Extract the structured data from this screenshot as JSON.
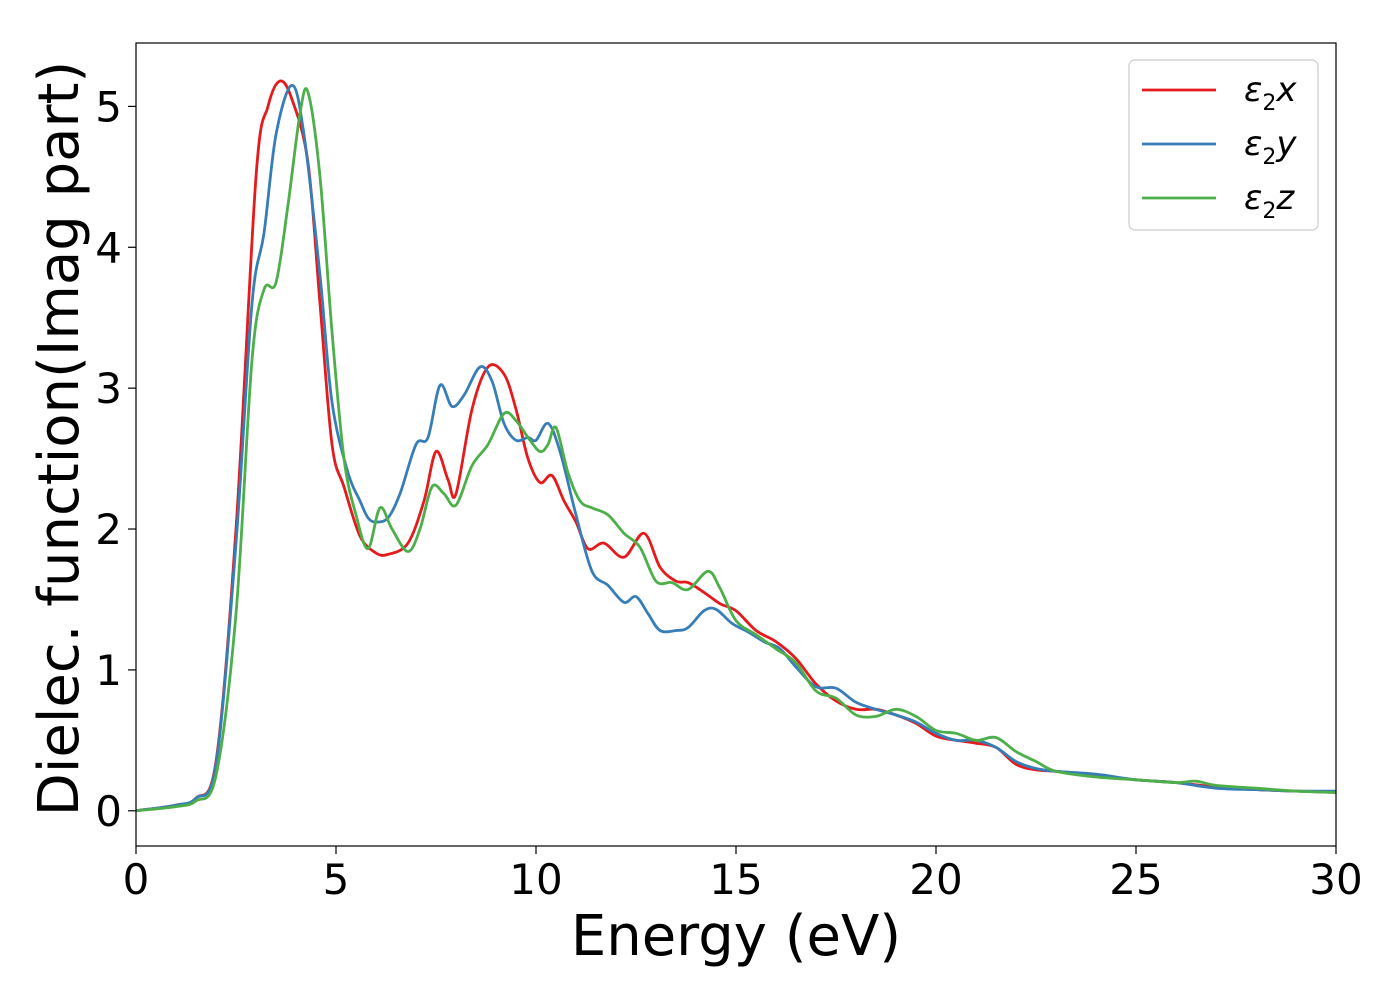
{
  "chart_data": {
    "type": "line",
    "xlabel": "Energy (eV)",
    "ylabel": "Dielec. function(Imag part)",
    "xlim": [
      0,
      30
    ],
    "ylim": [
      -0.25,
      5.45
    ],
    "xticks": [
      "0",
      "5",
      "10",
      "15",
      "20",
      "25",
      "30"
    ],
    "yticks": [
      "0",
      "1",
      "2",
      "3",
      "4",
      "5"
    ],
    "grid": false,
    "legend_position": "top-right",
    "series": [
      {
        "name": "ε2x",
        "legend": {
          "base": "ε",
          "sub": "2",
          "tail": "x"
        },
        "color": "#e41a1c",
        "points": [
          [
            0,
            0
          ],
          [
            1,
            0.04
          ],
          [
            1.5,
            0.09
          ],
          [
            2,
            0.35
          ],
          [
            2.5,
            2.0
          ],
          [
            3,
            4.5
          ],
          [
            3.3,
            5.0
          ],
          [
            3.6,
            5.18
          ],
          [
            3.9,
            5.05
          ],
          [
            4.3,
            4.6
          ],
          [
            4.6,
            3.6
          ],
          [
            4.9,
            2.6
          ],
          [
            5.2,
            2.3
          ],
          [
            5.6,
            1.95
          ],
          [
            6.0,
            1.83
          ],
          [
            6.3,
            1.82
          ],
          [
            6.8,
            1.9
          ],
          [
            7.2,
            2.2
          ],
          [
            7.5,
            2.55
          ],
          [
            7.8,
            2.35
          ],
          [
            8.0,
            2.25
          ],
          [
            8.4,
            2.85
          ],
          [
            8.8,
            3.15
          ],
          [
            9.2,
            3.1
          ],
          [
            9.5,
            2.85
          ],
          [
            9.8,
            2.5
          ],
          [
            10.1,
            2.33
          ],
          [
            10.4,
            2.38
          ],
          [
            10.7,
            2.2
          ],
          [
            11.0,
            2.05
          ],
          [
            11.3,
            1.86
          ],
          [
            11.7,
            1.9
          ],
          [
            12.2,
            1.8
          ],
          [
            12.7,
            1.97
          ],
          [
            13.1,
            1.73
          ],
          [
            13.5,
            1.63
          ],
          [
            13.8,
            1.62
          ],
          [
            14.2,
            1.55
          ],
          [
            14.6,
            1.47
          ],
          [
            15.0,
            1.42
          ],
          [
            15.5,
            1.28
          ],
          [
            16.0,
            1.2
          ],
          [
            16.5,
            1.08
          ],
          [
            17.0,
            0.9
          ],
          [
            17.5,
            0.78
          ],
          [
            18.0,
            0.72
          ],
          [
            18.5,
            0.72
          ],
          [
            19.0,
            0.68
          ],
          [
            19.5,
            0.62
          ],
          [
            20.0,
            0.53
          ],
          [
            20.5,
            0.5
          ],
          [
            21.0,
            0.48
          ],
          [
            21.5,
            0.45
          ],
          [
            22.0,
            0.33
          ],
          [
            22.5,
            0.29
          ],
          [
            23.0,
            0.28
          ],
          [
            24.0,
            0.25
          ],
          [
            25.0,
            0.22
          ],
          [
            26.0,
            0.2
          ],
          [
            27.0,
            0.17
          ],
          [
            28.0,
            0.15
          ],
          [
            29.0,
            0.14
          ],
          [
            30.0,
            0.13
          ]
        ]
      },
      {
        "name": "ε2y",
        "legend": {
          "base": "ε",
          "sub": "2",
          "tail": "y"
        },
        "color": "#377eb8",
        "points": [
          [
            0,
            0
          ],
          [
            1,
            0.04
          ],
          [
            1.5,
            0.09
          ],
          [
            2,
            0.33
          ],
          [
            2.5,
            1.9
          ],
          [
            2.9,
            3.6
          ],
          [
            3.2,
            4.1
          ],
          [
            3.5,
            4.8
          ],
          [
            3.9,
            5.15
          ],
          [
            4.2,
            4.8
          ],
          [
            4.6,
            3.8
          ],
          [
            4.9,
            2.9
          ],
          [
            5.3,
            2.4
          ],
          [
            5.6,
            2.2
          ],
          [
            5.8,
            2.08
          ],
          [
            6.0,
            2.05
          ],
          [
            6.3,
            2.08
          ],
          [
            6.6,
            2.25
          ],
          [
            7.0,
            2.6
          ],
          [
            7.3,
            2.65
          ],
          [
            7.6,
            3.02
          ],
          [
            7.9,
            2.87
          ],
          [
            8.2,
            2.95
          ],
          [
            8.6,
            3.15
          ],
          [
            8.9,
            3.05
          ],
          [
            9.2,
            2.75
          ],
          [
            9.5,
            2.63
          ],
          [
            9.8,
            2.65
          ],
          [
            10.0,
            2.63
          ],
          [
            10.3,
            2.75
          ],
          [
            10.6,
            2.55
          ],
          [
            11.0,
            2.1
          ],
          [
            11.4,
            1.7
          ],
          [
            11.8,
            1.6
          ],
          [
            12.2,
            1.48
          ],
          [
            12.5,
            1.52
          ],
          [
            12.8,
            1.4
          ],
          [
            13.1,
            1.28
          ],
          [
            13.5,
            1.28
          ],
          [
            13.8,
            1.3
          ],
          [
            14.2,
            1.42
          ],
          [
            14.5,
            1.43
          ],
          [
            14.9,
            1.33
          ],
          [
            15.3,
            1.27
          ],
          [
            15.7,
            1.2
          ],
          [
            16.1,
            1.15
          ],
          [
            16.5,
            1.02
          ],
          [
            17.0,
            0.88
          ],
          [
            17.5,
            0.87
          ],
          [
            18.0,
            0.77
          ],
          [
            18.5,
            0.72
          ],
          [
            19.0,
            0.68
          ],
          [
            19.5,
            0.63
          ],
          [
            20.0,
            0.55
          ],
          [
            20.5,
            0.5
          ],
          [
            21.0,
            0.5
          ],
          [
            21.5,
            0.45
          ],
          [
            22.0,
            0.35
          ],
          [
            22.5,
            0.3
          ],
          [
            23.0,
            0.28
          ],
          [
            24.0,
            0.26
          ],
          [
            25.0,
            0.22
          ],
          [
            26.0,
            0.2
          ],
          [
            27.0,
            0.16
          ],
          [
            28.0,
            0.15
          ],
          [
            29.0,
            0.14
          ],
          [
            30.0,
            0.14
          ]
        ]
      },
      {
        "name": "ε2z",
        "legend": {
          "base": "ε",
          "sub": "2",
          "tail": "z"
        },
        "color": "#4daf4a",
        "points": [
          [
            0,
            0
          ],
          [
            1,
            0.03
          ],
          [
            1.5,
            0.07
          ],
          [
            2,
            0.25
          ],
          [
            2.5,
            1.4
          ],
          [
            2.9,
            3.2
          ],
          [
            3.2,
            3.7
          ],
          [
            3.5,
            3.75
          ],
          [
            3.8,
            4.3
          ],
          [
            4.1,
            4.95
          ],
          [
            4.3,
            5.1
          ],
          [
            4.6,
            4.5
          ],
          [
            4.9,
            3.4
          ],
          [
            5.2,
            2.5
          ],
          [
            5.5,
            2.1
          ],
          [
            5.8,
            1.86
          ],
          [
            6.1,
            2.15
          ],
          [
            6.4,
            2.0
          ],
          [
            6.8,
            1.84
          ],
          [
            7.1,
            2.0
          ],
          [
            7.4,
            2.3
          ],
          [
            7.7,
            2.25
          ],
          [
            8.0,
            2.17
          ],
          [
            8.4,
            2.45
          ],
          [
            8.8,
            2.6
          ],
          [
            9.2,
            2.82
          ],
          [
            9.5,
            2.77
          ],
          [
            9.8,
            2.65
          ],
          [
            10.1,
            2.55
          ],
          [
            10.3,
            2.6
          ],
          [
            10.5,
            2.72
          ],
          [
            10.8,
            2.4
          ],
          [
            11.1,
            2.2
          ],
          [
            11.4,
            2.15
          ],
          [
            11.8,
            2.1
          ],
          [
            12.2,
            1.97
          ],
          [
            12.6,
            1.87
          ],
          [
            13.0,
            1.63
          ],
          [
            13.4,
            1.62
          ],
          [
            13.8,
            1.57
          ],
          [
            14.3,
            1.7
          ],
          [
            14.6,
            1.58
          ],
          [
            15.0,
            1.35
          ],
          [
            15.5,
            1.25
          ],
          [
            16.0,
            1.15
          ],
          [
            16.5,
            1.05
          ],
          [
            17.0,
            0.85
          ],
          [
            17.5,
            0.8
          ],
          [
            18.0,
            0.68
          ],
          [
            18.5,
            0.67
          ],
          [
            19.0,
            0.72
          ],
          [
            19.5,
            0.67
          ],
          [
            20.0,
            0.57
          ],
          [
            20.5,
            0.55
          ],
          [
            21.0,
            0.5
          ],
          [
            21.5,
            0.52
          ],
          [
            22.0,
            0.42
          ],
          [
            22.5,
            0.35
          ],
          [
            23.0,
            0.28
          ],
          [
            24.0,
            0.24
          ],
          [
            25.0,
            0.22
          ],
          [
            26.0,
            0.2
          ],
          [
            26.5,
            0.21
          ],
          [
            27.0,
            0.18
          ],
          [
            28.0,
            0.16
          ],
          [
            29.0,
            0.14
          ],
          [
            30.0,
            0.13
          ]
        ]
      }
    ]
  }
}
